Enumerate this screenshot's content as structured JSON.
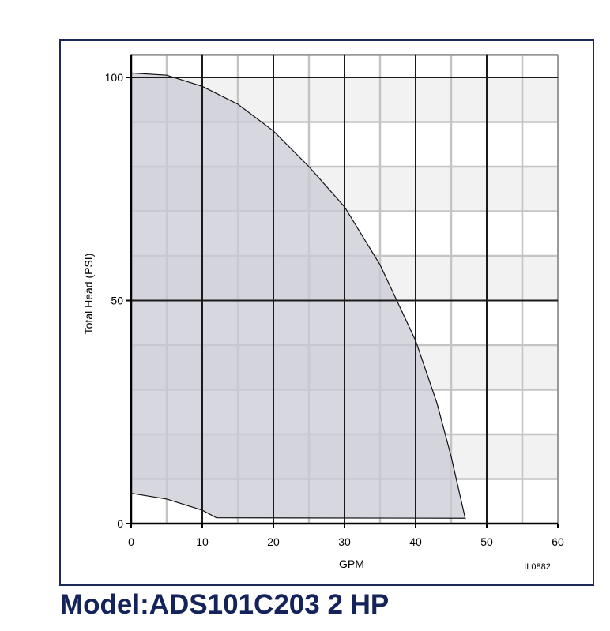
{
  "chart_data": {
    "type": "area",
    "title": "Model:ADS101C203 2 HP",
    "x_label": "GPM",
    "y_label": "Total Head (PSI)",
    "annotation": "IL0882",
    "series": [
      {
        "color": "#c9cad6",
        "x": [
          0,
          5,
          10,
          15,
          20,
          25,
          30,
          35,
          40,
          43,
          45,
          47
        ],
        "values": [
          101,
          100.5,
          98,
          94,
          88,
          80,
          71,
          58,
          41,
          27,
          15,
          1
        ]
      },
      {
        "color": "#c9cad6",
        "x": [
          47,
          12,
          10,
          5,
          0
        ],
        "values": [
          1.2,
          1.3,
          3,
          5.5,
          6.8
        ]
      }
    ],
    "xlim": [
      0,
      60
    ],
    "ylim": [
      0,
      105
    ],
    "xticks": [
      0,
      10,
      20,
      30,
      40,
      50,
      60
    ],
    "yticks": [
      0,
      50,
      100
    ],
    "grid": true
  }
}
